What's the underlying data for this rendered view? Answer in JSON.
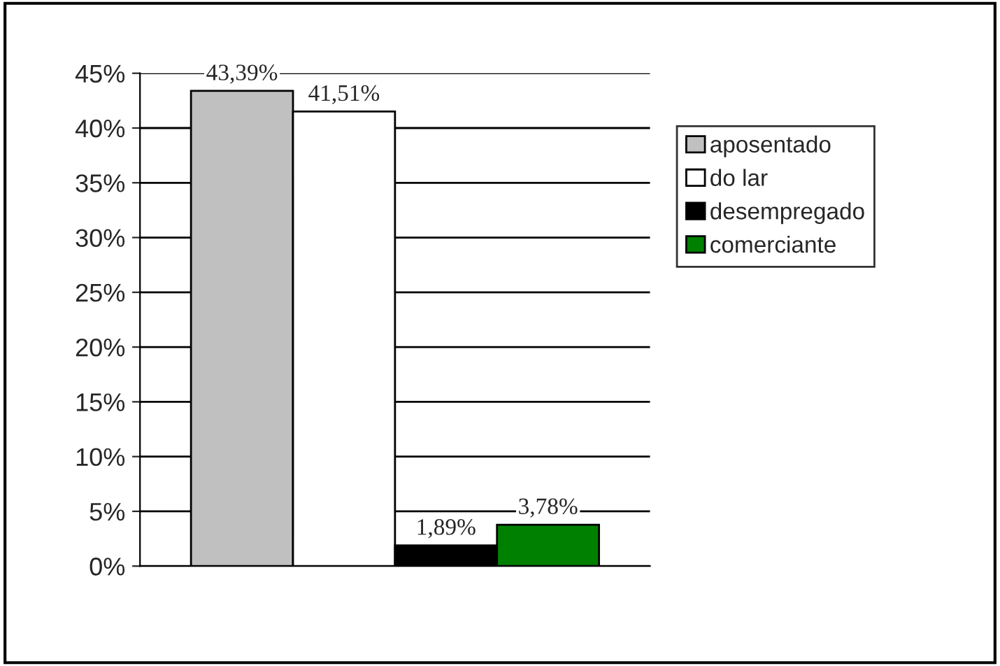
{
  "chart_data": {
    "type": "bar",
    "categories": [
      null
    ],
    "series": [
      {
        "name": "aposentado",
        "color": "#c0c0c0",
        "values": [
          43.39
        ],
        "value_labels": [
          "43,39%"
        ]
      },
      {
        "name": "do lar",
        "color": "#ffffff",
        "values": [
          41.51
        ],
        "value_labels": [
          "41,51%"
        ]
      },
      {
        "name": "desempregado",
        "color": "#000000",
        "values": [
          1.89
        ],
        "value_labels": [
          "1,89%"
        ]
      },
      {
        "name": "comerciante",
        "color": "#008000",
        "values": [
          3.78
        ],
        "value_labels": [
          "3,78%"
        ]
      }
    ],
    "ylim": [
      0,
      45
    ],
    "yticks": [
      {
        "value": 0,
        "label": "0%"
      },
      {
        "value": 5,
        "label": "5%"
      },
      {
        "value": 10,
        "label": "10%"
      },
      {
        "value": 15,
        "label": "15%"
      },
      {
        "value": 20,
        "label": "20%"
      },
      {
        "value": 25,
        "label": "25%"
      },
      {
        "value": 30,
        "label": "30%"
      },
      {
        "value": 35,
        "label": "35%"
      },
      {
        "value": 40,
        "label": "40%"
      },
      {
        "value": 45,
        "label": "45%"
      }
    ],
    "grid": "y",
    "legend": "right"
  }
}
